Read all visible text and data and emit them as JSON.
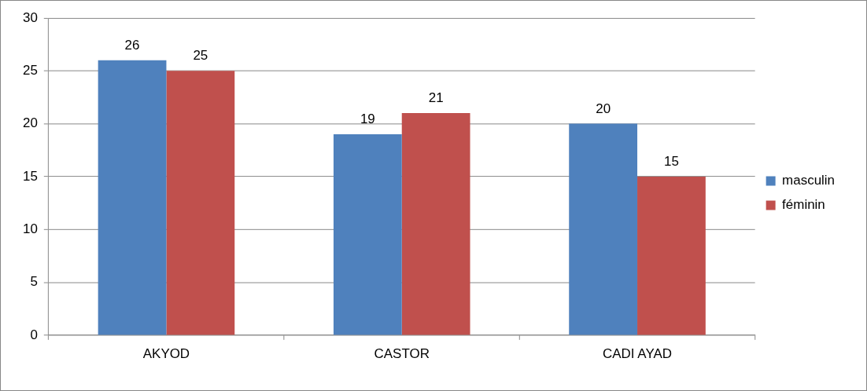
{
  "chart_data": {
    "type": "bar",
    "categories": [
      "AKYOD",
      "CASTOR",
      "CADI AYAD"
    ],
    "series": [
      {
        "name": "masculin",
        "color": "#4f81bd",
        "values": [
          26,
          19,
          20
        ]
      },
      {
        "name": "féminin",
        "color": "#c0504d",
        "values": [
          25,
          21,
          15
        ]
      }
    ],
    "ylim": [
      0,
      30
    ],
    "yticks": [
      0,
      5,
      10,
      15,
      20,
      25,
      30
    ],
    "grid": "y",
    "legend": "right",
    "data_labels": true
  }
}
